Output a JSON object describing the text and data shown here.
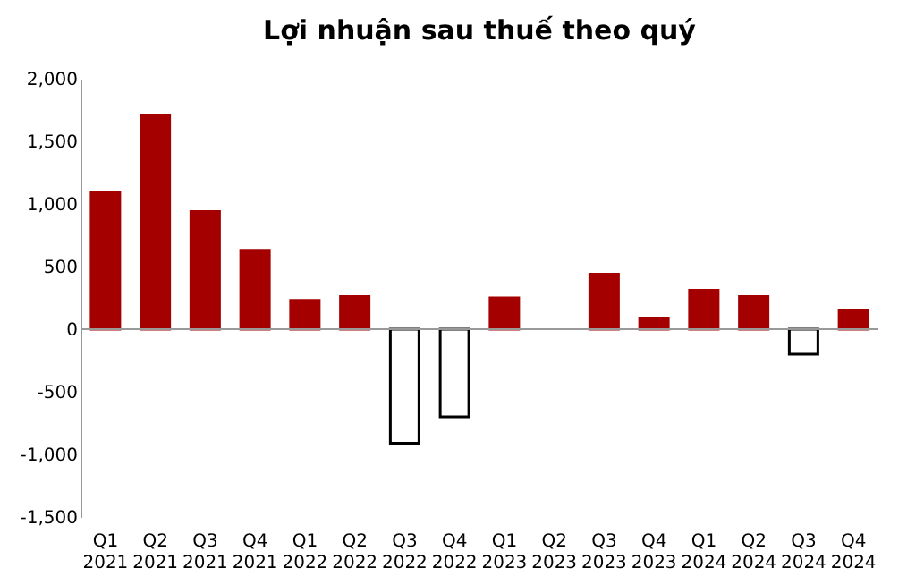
{
  "chart_data": {
    "type": "bar",
    "title": "Lợi nhuận sau thuế theo quý",
    "categories": [
      "Q1 2021",
      "Q2 2021",
      "Q3 2021",
      "Q4 2021",
      "Q1 2022",
      "Q2 2022",
      "Q3 2022",
      "Q4 2022",
      "Q1 2023",
      "Q2 2023",
      "Q3 2023",
      "Q4 2023",
      "Q1 2024",
      "Q2 2024",
      "Q3 2024",
      "Q4 2024"
    ],
    "values": [
      1090,
      1710,
      940,
      630,
      230,
      260,
      -910,
      -700,
      250,
      null,
      440,
      90,
      310,
      260,
      -200,
      150
    ],
    "colors": [
      "#a50000",
      "#a50000",
      "#a50000",
      "#a50000",
      "#a50000",
      "#a50000",
      "#ffffff",
      "#ffffff",
      "#a50000",
      "#a50000",
      "#a50000",
      "#a50000",
      "#a50000",
      "#a50000",
      "#ffffff",
      "#a50000"
    ],
    "ylim": [
      -1500,
      2000
    ],
    "yticks": [
      {
        "value": -1500,
        "label": "-1,500"
      },
      {
        "value": -1000,
        "label": "-1,000"
      },
      -500,
      0,
      500,
      {
        "value": 1000,
        "label": "1,000"
      },
      {
        "value": 1500,
        "label": "1,500"
      },
      {
        "value": 2000,
        "label": "2,000"
      }
    ],
    "grid": false,
    "ref_lines": [
      {
        "axis": "y",
        "value": 0,
        "color": "#999999"
      }
    ]
  }
}
